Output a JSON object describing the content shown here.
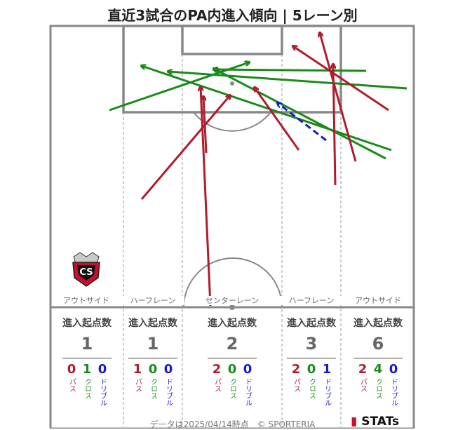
{
  "title": "直近3試合のPA内進入傾向 | 5レーン別",
  "lanes": [
    {
      "label": "アウトサイド",
      "header": "進入起点数",
      "total": "1",
      "pass": "0",
      "cross": "1",
      "dribble": "0"
    },
    {
      "label": "ハーフレーン",
      "header": "進入起点数",
      "total": "1",
      "pass": "1",
      "cross": "0",
      "dribble": "0"
    },
    {
      "label": "センターレーン",
      "header": "進入起点数",
      "total": "2",
      "pass": "2",
      "cross": "0",
      "dribble": "0"
    },
    {
      "label": "ハーフレーン",
      "header": "進入起点数",
      "total": "3",
      "pass": "2",
      "cross": "0",
      "dribble": "1"
    },
    {
      "label": "アウトサイド",
      "header": "進入起点数",
      "total": "6",
      "pass": "2",
      "cross": "4",
      "dribble": "0"
    }
  ],
  "legend": {
    "pass": "パス",
    "cross": "クロス",
    "dribble": "ドリブル"
  },
  "colors": {
    "pass": "#b01c2e",
    "cross": "#1a8a1a",
    "dribble": "#1a1acc",
    "field_line": "#888888"
  },
  "footer": "データは2025/04/14時点　© SPORTERIA",
  "brand": {
    "logo_text": "STATs"
  },
  "emblem": {
    "letters": "CS",
    "icon": "consadole-sapporo-emblem"
  }
}
